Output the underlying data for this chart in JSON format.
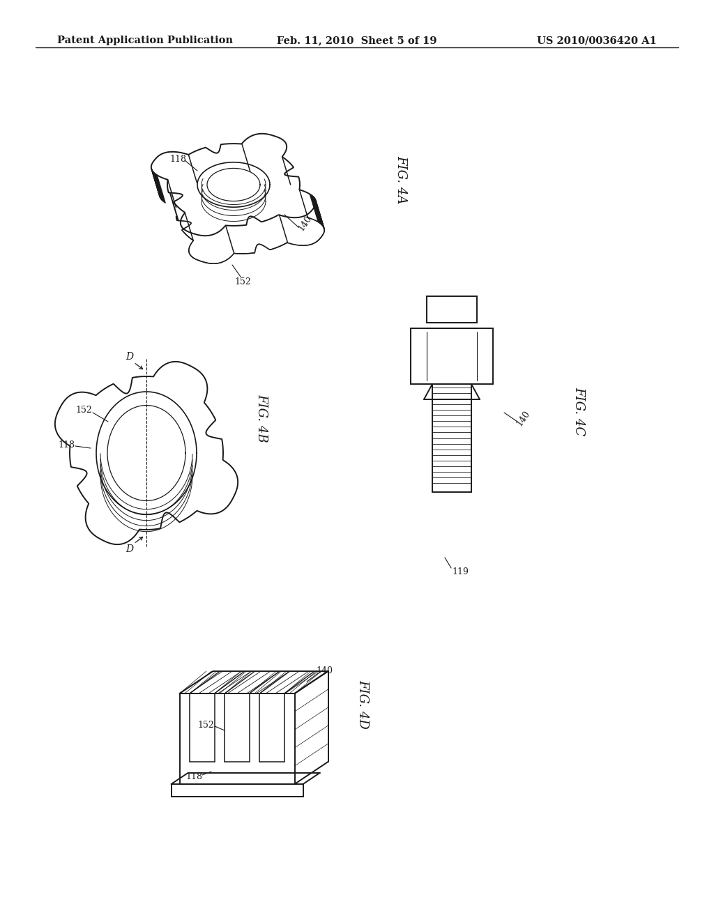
{
  "background_color": "#ffffff",
  "header": {
    "left": "Patent Application Publication",
    "center": "Feb. 11, 2010  Sheet 5 of 19",
    "right": "US 2010/0036420 A1",
    "fontsize": 10.5
  },
  "line_color": "#1a1a1a",
  "line_width": 1.4
}
